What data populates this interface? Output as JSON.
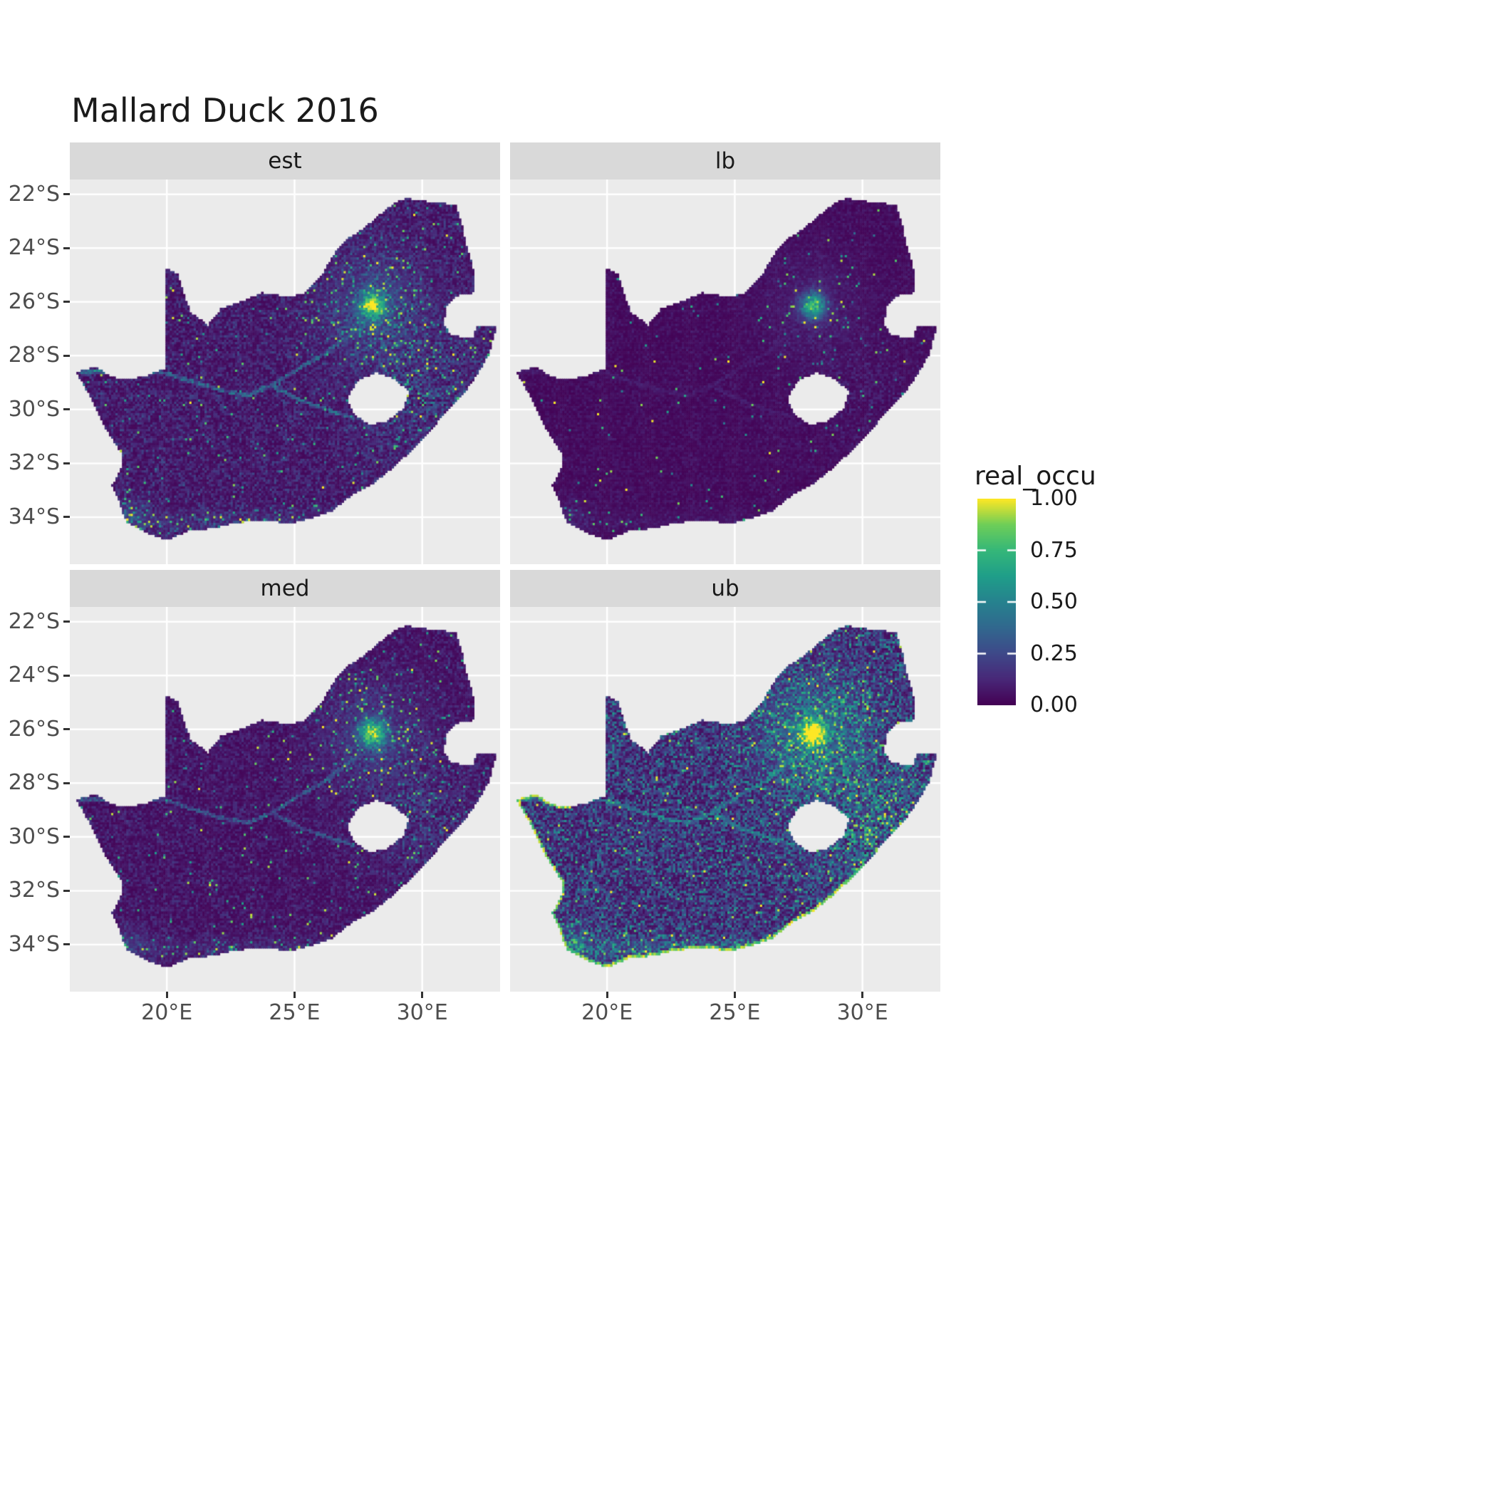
{
  "title": "Mallard Duck 2016",
  "facets": [
    {
      "label": "est"
    },
    {
      "label": "lb"
    },
    {
      "label": "med"
    },
    {
      "label": "ub"
    }
  ],
  "axes": {
    "x_tick_labels": [
      "20°E",
      "25°E",
      "30°E"
    ],
    "x_tick_values": [
      20,
      25,
      30
    ],
    "y_tick_labels": [
      "22°S",
      "24°S",
      "26°S",
      "28°S",
      "30°S",
      "32°S",
      "34°S"
    ],
    "y_tick_values": [
      -22,
      -24,
      -26,
      -28,
      -30,
      -32,
      -34
    ]
  },
  "legend": {
    "title": "real_occu",
    "tick_labels": [
      "1.00",
      "0.75",
      "0.50",
      "0.25",
      "0.00"
    ],
    "tick_values": [
      1,
      0.75,
      0.5,
      0.25,
      0
    ]
  },
  "colors": {
    "background": "#ffffff",
    "panel_bg": "#ebebeb",
    "strip_bg": "#d9d9d9",
    "grid": "#ffffff",
    "axis_text": "#4d4d4d",
    "title_text": "#1a1a1a"
  },
  "chart_data": {
    "type": "heatmap",
    "description": "Four faceted raster maps of South Africa (est, lb, med, ub) showing occupancy probability real_occu from 0.00 to 1.00 on a viridis scale for Mallard Duck 2016; values are near 0 (dark purple) over most of the country with a bright yellow cluster around 28E 26S, a secondary bright area near the southwest Cape coast, scattered bright cells elsewhere; lb is darkest overall and ub is brightest with green-teal speckling and a yellow coastal fringe in the south and west.",
    "value_range": [
      0,
      1
    ],
    "colormap": "viridis",
    "viridis_stops": [
      [
        0.0,
        "#440154"
      ],
      [
        0.125,
        "#482878"
      ],
      [
        0.25,
        "#3e4989"
      ],
      [
        0.375,
        "#31688e"
      ],
      [
        0.5,
        "#26828e"
      ],
      [
        0.625,
        "#1f9e89"
      ],
      [
        0.75,
        "#35b779"
      ],
      [
        0.875,
        "#6ece58"
      ],
      [
        1.0,
        "#fde725"
      ]
    ],
    "lon_range": [
      16.2,
      33.05
    ],
    "lat_range": [
      -35.75,
      -21.45
    ],
    "cell_size_deg": 0.085,
    "south_africa_outline": [
      [
        16.45,
        -28.6
      ],
      [
        17.2,
        -28.4
      ],
      [
        17.85,
        -28.78
      ],
      [
        18.55,
        -28.87
      ],
      [
        19.3,
        -28.7
      ],
      [
        19.98,
        -28.43
      ],
      [
        19.98,
        -24.77
      ],
      [
        20.42,
        -24.95
      ],
      [
        20.65,
        -25.65
      ],
      [
        20.9,
        -26.35
      ],
      [
        21.6,
        -26.85
      ],
      [
        22.1,
        -26.25
      ],
      [
        22.9,
        -25.98
      ],
      [
        23.7,
        -25.65
      ],
      [
        24.6,
        -25.78
      ],
      [
        25.35,
        -25.72
      ],
      [
        25.6,
        -25.45
      ],
      [
        26.1,
        -24.9
      ],
      [
        26.5,
        -24.25
      ],
      [
        26.9,
        -23.75
      ],
      [
        27.55,
        -23.35
      ],
      [
        28.2,
        -22.85
      ],
      [
        28.9,
        -22.3
      ],
      [
        29.4,
        -22.15
      ],
      [
        30.0,
        -22.25
      ],
      [
        30.65,
        -22.3
      ],
      [
        31.3,
        -22.4
      ],
      [
        31.55,
        -23.2
      ],
      [
        31.7,
        -23.9
      ],
      [
        31.95,
        -24.6
      ],
      [
        32.02,
        -25.3
      ],
      [
        32.02,
        -25.65
      ],
      [
        31.4,
        -25.72
      ],
      [
        30.95,
        -26.1
      ],
      [
        30.8,
        -26.8
      ],
      [
        31.1,
        -27.2
      ],
      [
        31.6,
        -27.32
      ],
      [
        31.97,
        -27.3
      ],
      [
        32.13,
        -26.85
      ],
      [
        32.89,
        -26.85
      ],
      [
        32.6,
        -27.9
      ],
      [
        32.25,
        -28.5
      ],
      [
        31.75,
        -29.2
      ],
      [
        31.05,
        -29.9
      ],
      [
        30.4,
        -30.65
      ],
      [
        29.7,
        -31.35
      ],
      [
        28.9,
        -32.1
      ],
      [
        28.1,
        -32.7
      ],
      [
        27.3,
        -33.1
      ],
      [
        26.45,
        -33.75
      ],
      [
        25.65,
        -34.0
      ],
      [
        24.85,
        -34.2
      ],
      [
        23.6,
        -34.1
      ],
      [
        22.55,
        -34.2
      ],
      [
        21.8,
        -34.4
      ],
      [
        20.95,
        -34.45
      ],
      [
        20.0,
        -34.82
      ],
      [
        19.3,
        -34.6
      ],
      [
        18.8,
        -34.35
      ],
      [
        18.45,
        -34.2
      ],
      [
        18.3,
        -33.9
      ],
      [
        18.1,
        -33.3
      ],
      [
        17.85,
        -32.8
      ],
      [
        18.25,
        -32.1
      ],
      [
        18.2,
        -31.6
      ],
      [
        17.55,
        -30.6
      ],
      [
        17.05,
        -29.6
      ],
      [
        16.7,
        -29.0
      ]
    ],
    "lesotho_hole": [
      [
        27.05,
        -29.6
      ],
      [
        27.4,
        -28.95
      ],
      [
        28.15,
        -28.6
      ],
      [
        28.9,
        -28.85
      ],
      [
        29.45,
        -29.3
      ],
      [
        29.25,
        -29.95
      ],
      [
        28.55,
        -30.45
      ],
      [
        27.9,
        -30.55
      ],
      [
        27.35,
        -30.2
      ]
    ],
    "clusters": {
      "primary": {
        "lon": 28.05,
        "lat": -26.15,
        "sigma_core": 0.33,
        "sigma_halo": 1.35
      },
      "southwest_cape": {
        "lon": 18.55,
        "lat": -33.95,
        "sigma": 0.5
      },
      "east_broad": {
        "lon": 30.2,
        "lat": -29.4,
        "sigma": 1.7
      },
      "south_coast_band": {
        "lat_center": -34.15,
        "sigma_lat": 0.3,
        "lon_min": 18.0,
        "lon_max": 27.0
      }
    },
    "rivers": [
      [
        [
          16.6,
          -28.6
        ],
        [
          17.8,
          -28.62
        ],
        [
          19.0,
          -28.5
        ],
        [
          20.0,
          -28.65
        ],
        [
          21.0,
          -28.95
        ],
        [
          22.2,
          -29.3
        ],
        [
          23.2,
          -29.45
        ],
        [
          24.1,
          -29.1
        ],
        [
          25.2,
          -29.65
        ],
        [
          26.3,
          -30.0
        ],
        [
          27.3,
          -30.3
        ]
      ],
      [
        [
          24.1,
          -29.1
        ],
        [
          25.1,
          -28.5
        ],
        [
          26.2,
          -27.9
        ],
        [
          27.0,
          -27.3
        ],
        [
          27.7,
          -26.9
        ]
      ]
    ],
    "facet_params": {
      "est": {
        "seed": 1,
        "base": 0.05,
        "broad": 0.2,
        "regional": 0.5,
        "kzn": 0.3,
        "core": 1.0,
        "scatter": 0.05,
        "river": 1.0,
        "coastal_fringe": false
      },
      "lb": {
        "seed": 2,
        "base": 0.025,
        "broad": 0.07,
        "regional": 0.2,
        "kzn": 0.1,
        "core": 0.85,
        "scatter": 0.016,
        "river": 0.25,
        "coastal_fringe": false
      },
      "med": {
        "seed": 3,
        "base": 0.04,
        "broad": 0.15,
        "regional": 0.42,
        "kzn": 0.26,
        "core": 1.0,
        "scatter": 0.038,
        "river": 0.8,
        "coastal_fringe": false
      },
      "ub": {
        "seed": 4,
        "base": 0.09,
        "broad": 0.5,
        "regional": 0.8,
        "kzn": 0.55,
        "core": 1.15,
        "scatter": 0.085,
        "river": 1.3,
        "coastal_fringe": true
      }
    }
  }
}
